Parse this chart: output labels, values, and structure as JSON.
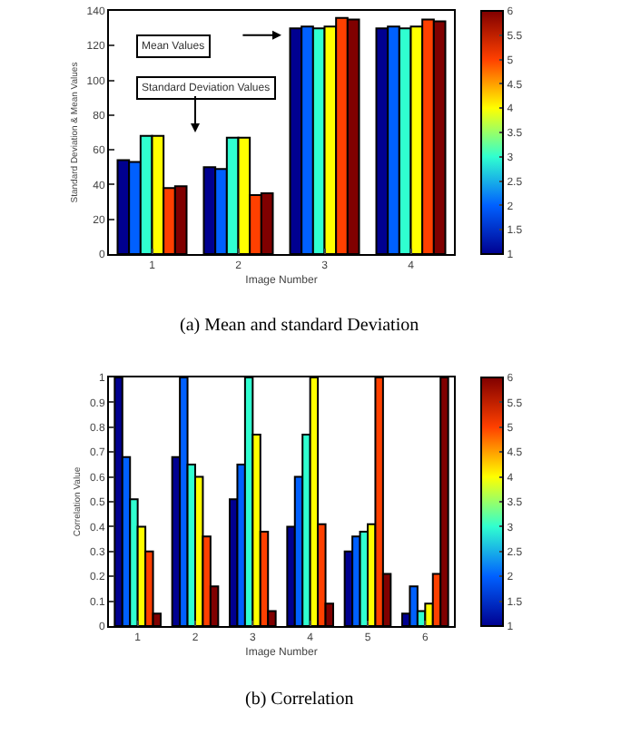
{
  "chart_data": [
    {
      "type": "bar",
      "title": "(a) Mean and standard Deviation",
      "xlabel": "Image Number",
      "ylabel": "Standard Deviation & Mean Values",
      "categories": [
        "1",
        "2",
        "3",
        "4"
      ],
      "series": [
        {
          "color": "#000090",
          "values": [
            54,
            50,
            130,
            130
          ]
        },
        {
          "color": "#0060ff",
          "values": [
            53,
            49,
            131,
            131
          ]
        },
        {
          "color": "#30ffd0",
          "values": [
            68,
            67,
            130,
            130
          ]
        },
        {
          "color": "#ffff00",
          "values": [
            68,
            67,
            131,
            131
          ]
        },
        {
          "color": "#ff4000",
          "values": [
            38,
            34,
            136,
            135
          ]
        },
        {
          "color": "#800000",
          "values": [
            39,
            35,
            135,
            134
          ]
        }
      ],
      "ylim": [
        0,
        140
      ],
      "yticks": [
        0,
        20,
        40,
        60,
        80,
        100,
        120,
        140
      ],
      "grid": false,
      "clim": [
        1,
        6
      ],
      "cticks": [
        1,
        1.5,
        2,
        2.5,
        3,
        3.5,
        4,
        4.5,
        5,
        5.5,
        6
      ],
      "annotations": [
        "Mean Values",
        "Standard Deviation Values"
      ]
    },
    {
      "type": "bar",
      "title": "(b) Correlation",
      "xlabel": "Image Number",
      "ylabel": "Correlation Value",
      "categories": [
        "1",
        "2",
        "3",
        "4",
        "5",
        "6"
      ],
      "series": [
        {
          "color": "#000090",
          "values": [
            1,
            0.68,
            0.51,
            0.4,
            0.3,
            0.05
          ]
        },
        {
          "color": "#0060ff",
          "values": [
            0.68,
            1,
            0.65,
            0.6,
            0.36,
            0.16
          ]
        },
        {
          "color": "#30ffd0",
          "values": [
            0.51,
            0.65,
            1,
            0.77,
            0.38,
            0.06
          ]
        },
        {
          "color": "#ffff00",
          "values": [
            0.4,
            0.6,
            0.77,
            1,
            0.41,
            0.09
          ]
        },
        {
          "color": "#ff4000",
          "values": [
            0.3,
            0.36,
            0.38,
            0.41,
            1,
            0.21
          ]
        },
        {
          "color": "#800000",
          "values": [
            0.05,
            0.16,
            0.06,
            0.09,
            0.21,
            1
          ]
        }
      ],
      "ylim": [
        0,
        1
      ],
      "yticks": [
        0,
        0.1,
        0.2,
        0.3,
        0.4,
        0.5,
        0.6,
        0.7,
        0.8,
        0.9,
        1
      ],
      "grid": false,
      "clim": [
        1,
        6
      ],
      "cticks": [
        1,
        1.5,
        2,
        2.5,
        3,
        3.5,
        4,
        4.5,
        5,
        5.5,
        6
      ]
    }
  ]
}
